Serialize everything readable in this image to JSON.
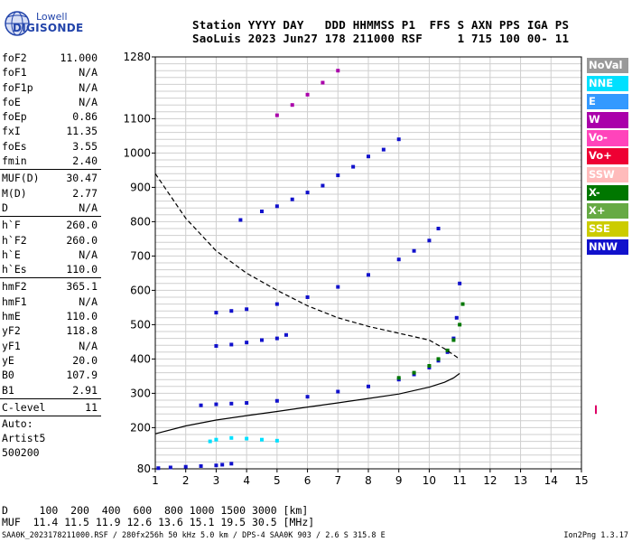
{
  "logo": {
    "line1": "Lowell",
    "line2": "DIGISONDE"
  },
  "header": {
    "row1": "Station YYYY DAY   DDD HHMMSS P1  FFS S AXN PPS IGA PS",
    "row2": "SaoLuis 2023 Jun27 178 211000 RSF     1 715 100 00- 11"
  },
  "params": [
    {
      "k": "foF2",
      "v": "11.000"
    },
    {
      "k": "foF1",
      "v": "N/A"
    },
    {
      "k": "foF1p",
      "v": "N/A"
    },
    {
      "k": "foE",
      "v": "N/A"
    },
    {
      "k": "foEp",
      "v": "0.86"
    },
    {
      "k": "fxI",
      "v": "11.35"
    },
    {
      "k": "foEs",
      "v": "3.55"
    },
    {
      "k": "fmin",
      "v": "2.40"
    },
    {
      "div": true
    },
    {
      "k": "MUF(D)",
      "v": "30.47"
    },
    {
      "k": "M(D)",
      "v": "2.77"
    },
    {
      "k": "D",
      "v": "N/A"
    },
    {
      "div": true
    },
    {
      "k": "h`F",
      "v": "260.0"
    },
    {
      "k": "h`F2",
      "v": "260.0"
    },
    {
      "k": "h`E",
      "v": "N/A"
    },
    {
      "k": "h`Es",
      "v": "110.0"
    },
    {
      "div": true
    },
    {
      "k": "hmF2",
      "v": "365.1"
    },
    {
      "k": "hmF1",
      "v": "N/A"
    },
    {
      "k": "hmE",
      "v": "110.0"
    },
    {
      "k": "yF2",
      "v": "118.8"
    },
    {
      "k": "yF1",
      "v": "N/A"
    },
    {
      "k": "yE",
      "v": "20.0"
    },
    {
      "k": "B0",
      "v": "107.9"
    },
    {
      "k": "B1",
      "v": "2.91"
    },
    {
      "div": true
    },
    {
      "k": "C-level",
      "v": "11"
    },
    {
      "div": true
    }
  ],
  "auto": [
    "Auto:",
    "Artist5",
    "500200"
  ],
  "legend": [
    {
      "label": "NoVal",
      "color": "#999999"
    },
    {
      "label": "NNE",
      "color": "#00e0ff"
    },
    {
      "label": "E",
      "color": "#3399ff"
    },
    {
      "label": "W",
      "color": "#aa00aa"
    },
    {
      "label": "Vo-",
      "color": "#ff44bb"
    },
    {
      "label": "Vo+",
      "color": "#ee0033"
    },
    {
      "label": "SSW",
      "color": "#ffbbbb"
    },
    {
      "label": "X-",
      "color": "#007700"
    },
    {
      "label": "X+",
      "color": "#66aa44"
    },
    {
      "label": "SSE",
      "color": "#cccc00"
    },
    {
      "label": "NNW",
      "color": "#1111cc"
    }
  ],
  "muf": {
    "row1": "D     100  200  400  600  800 1000 1500 3000 [km]",
    "row2": "MUF  11.4 11.5 11.9 12.6 13.6 15.1 19.5 30.5 [MHz]"
  },
  "footer": {
    "left": "SAA0K_2023178211000.RSF / 280fx256h 50 kHz 5.0 km / DPS-4 SAA0K 903 / 2.6 S 315.8 E",
    "right": "Ion2Png 1.3.17"
  },
  "chart_data": {
    "type": "scatter",
    "title": "",
    "xlabel": "",
    "ylabel": "",
    "xlim": [
      1,
      15
    ],
    "ylim": [
      80,
      1280
    ],
    "xticks": [
      1,
      2,
      3,
      4,
      5,
      6,
      7,
      8,
      9,
      10,
      11,
      12,
      13,
      14,
      15
    ],
    "yticks": [
      80,
      200,
      300,
      400,
      500,
      600,
      700,
      800,
      900,
      1000,
      1100,
      1280
    ],
    "grid": true,
    "series": [
      {
        "name": "F2 trace (O)",
        "color": "#1111cc",
        "kind": "points",
        "x": [
          2.5,
          3.0,
          3.5,
          4.0,
          5.0,
          6.0,
          7.0,
          8.0,
          9.0,
          9.5,
          10.0,
          10.3,
          10.6,
          10.8,
          10.9,
          11.0
        ],
        "y": [
          265,
          268,
          270,
          272,
          278,
          290,
          305,
          320,
          340,
          355,
          375,
          395,
          420,
          460,
          520,
          620
        ]
      },
      {
        "name": "F2 trace (X)",
        "color": "#007700",
        "kind": "points",
        "x": [
          9.0,
          9.5,
          10.0,
          10.3,
          10.6,
          10.8,
          11.0,
          11.1
        ],
        "y": [
          345,
          360,
          380,
          400,
          425,
          455,
          500,
          560
        ]
      },
      {
        "name": "2F multiple",
        "color": "#1111cc",
        "kind": "points",
        "x": [
          3.0,
          3.5,
          4.0,
          5.0,
          6.0,
          7.0,
          8.0,
          9.0,
          9.5,
          10.0,
          10.3
        ],
        "y": [
          535,
          540,
          545,
          560,
          580,
          610,
          645,
          690,
          715,
          745,
          780
        ]
      },
      {
        "name": "3F multiple",
        "color": "#1111cc",
        "kind": "points",
        "x": [
          3.8,
          4.5,
          5.0,
          5.5,
          6.0,
          6.5,
          7.0,
          7.5,
          8.0,
          8.5,
          9.0
        ],
        "y": [
          805,
          830,
          845,
          865,
          885,
          905,
          935,
          960,
          990,
          1010,
          1040
        ]
      },
      {
        "name": "4F multiple",
        "color": "#aa00aa",
        "kind": "points",
        "x": [
          5.0,
          5.5,
          6.0,
          6.5,
          7.0
        ],
        "y": [
          1110,
          1140,
          1170,
          1205,
          1240
        ]
      },
      {
        "name": "Es trace",
        "color": "#1111cc",
        "kind": "points",
        "x": [
          1.1,
          1.5,
          2.0,
          2.5,
          3.0,
          3.2,
          3.5
        ],
        "y": [
          82,
          84,
          86,
          88,
          90,
          92,
          95
        ]
      },
      {
        "name": "Es spread",
        "color": "#00e0ff",
        "kind": "points",
        "x": [
          2.8,
          3.0,
          3.5,
          4.0,
          4.5,
          5.0
        ],
        "y": [
          160,
          165,
          170,
          168,
          165,
          162
        ]
      },
      {
        "name": "F spread",
        "color": "#1111cc",
        "kind": "points",
        "x": [
          3.0,
          3.5,
          4.0,
          4.5,
          5.0,
          5.3
        ],
        "y": [
          438,
          442,
          448,
          455,
          460,
          470
        ]
      },
      {
        "name": "True height profile",
        "color": "#000000",
        "kind": "line",
        "x": [
          1.0,
          2.0,
          3.0,
          4.0,
          5.0,
          6.0,
          7.0,
          8.0,
          9.0,
          10.0,
          10.5,
          10.8,
          11.0
        ],
        "y": [
          182,
          205,
          222,
          235,
          247,
          260,
          272,
          285,
          298,
          318,
          332,
          345,
          358
        ]
      },
      {
        "name": "MUF curve",
        "color": "#000000",
        "kind": "dashed",
        "x": [
          1.0,
          2.0,
          3.0,
          4.0,
          5.0,
          6.0,
          7.0,
          8.0,
          9.0,
          10.0,
          10.5,
          11.0
        ],
        "y": [
          940,
          810,
          715,
          650,
          600,
          555,
          520,
          495,
          475,
          455,
          430,
          400
        ]
      }
    ]
  }
}
